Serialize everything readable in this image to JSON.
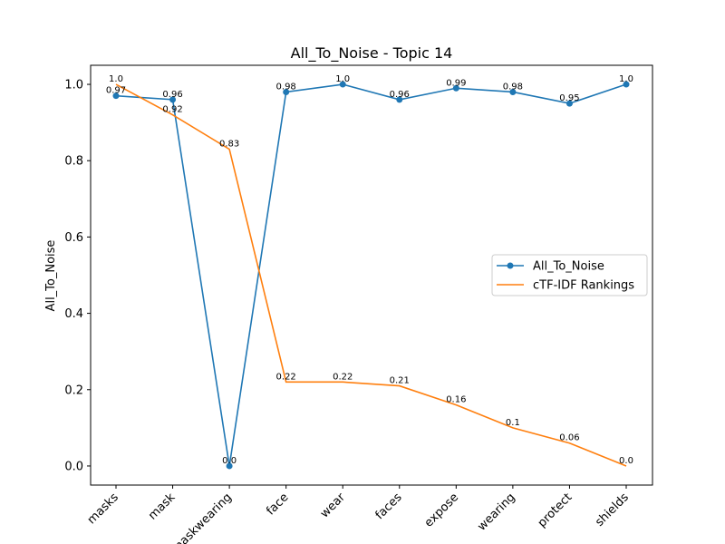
{
  "chart_data": {
    "type": "line",
    "title": "All_To_Noise - Topic 14",
    "xlabel": "",
    "ylabel": "All_To_Noise",
    "categories": [
      "masks",
      "mask",
      "maskwearing",
      "face",
      "wear",
      "faces",
      "expose",
      "wearing",
      "protect",
      "shields"
    ],
    "ylim": [
      -0.05,
      1.05
    ],
    "yticks": [
      0.0,
      0.2,
      0.4,
      0.6,
      0.8,
      1.0
    ],
    "ytick_labels": [
      "0.0",
      "0.2",
      "0.4",
      "0.6",
      "0.8",
      "1.0"
    ],
    "grid": false,
    "legend_position": "center-right",
    "series": [
      {
        "name": "All_To_Noise",
        "color": "#1f77b4",
        "marker": "circle",
        "values": [
          0.97,
          0.96,
          0.0,
          0.98,
          1.0,
          0.96,
          0.99,
          0.98,
          0.95,
          1.0
        ],
        "labels": [
          "0.97",
          "0.96",
          "0.0",
          "0.98",
          "1.0",
          "0.96",
          "0.99",
          "0.98",
          "0.95",
          "1.0"
        ]
      },
      {
        "name": "cTF-IDF Rankings",
        "color": "#ff7f0e",
        "marker": "none",
        "values": [
          1.0,
          0.92,
          0.83,
          0.22,
          0.22,
          0.21,
          0.16,
          0.1,
          0.06,
          0.0
        ],
        "labels": [
          "1.0",
          "0.92",
          "0.83",
          "0.22",
          "0.22",
          "0.21",
          "0.16",
          "0.1",
          "0.06",
          "0.0"
        ]
      }
    ]
  }
}
